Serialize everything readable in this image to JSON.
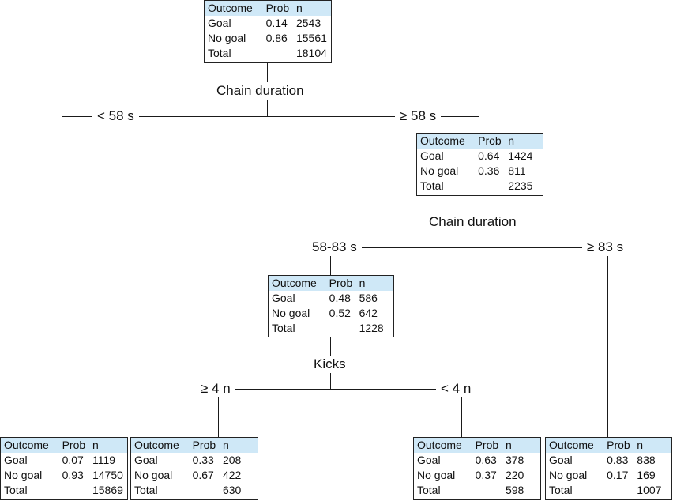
{
  "nodes": {
    "root": {
      "headers": [
        "Outcome",
        "Prob",
        "n"
      ],
      "rows": [
        [
          "Goal",
          "0.14",
          "2543"
        ],
        [
          "No goal",
          "0.86",
          "15561"
        ],
        [
          "Total",
          "",
          "18104"
        ]
      ]
    },
    "ge58": {
      "headers": [
        "Outcome",
        "Prob",
        "n"
      ],
      "rows": [
        [
          "Goal",
          "0.64",
          "1424"
        ],
        [
          "No goal",
          "0.36",
          "811"
        ],
        [
          "Total",
          "",
          "2235"
        ]
      ]
    },
    "mid": {
      "headers": [
        "Outcome",
        "Prob",
        "n"
      ],
      "rows": [
        [
          "Goal",
          "0.48",
          "586"
        ],
        [
          "No goal",
          "0.52",
          "642"
        ],
        [
          "Total",
          "",
          "1228"
        ]
      ]
    },
    "leaf_lt58": {
      "headers": [
        "Outcome",
        "Prob",
        "n"
      ],
      "rows": [
        [
          "Goal",
          "0.07",
          "1119"
        ],
        [
          "No goal",
          "0.93",
          "14750"
        ],
        [
          "Total",
          "",
          "15869"
        ]
      ]
    },
    "leaf_ge4": {
      "headers": [
        "Outcome",
        "Prob",
        "n"
      ],
      "rows": [
        [
          "Goal",
          "0.33",
          "208"
        ],
        [
          "No goal",
          "0.67",
          "422"
        ],
        [
          "Total",
          "",
          "630"
        ]
      ]
    },
    "leaf_lt4": {
      "headers": [
        "Outcome",
        "Prob",
        "n"
      ],
      "rows": [
        [
          "Goal",
          "0.63",
          "378"
        ],
        [
          "No goal",
          "0.37",
          "220"
        ],
        [
          "Total",
          "",
          "598"
        ]
      ]
    },
    "leaf_ge83": {
      "headers": [
        "Outcome",
        "Prob",
        "n"
      ],
      "rows": [
        [
          "Goal",
          "0.83",
          "838"
        ],
        [
          "No goal",
          "0.17",
          "169"
        ],
        [
          "Total",
          "",
          "1007"
        ]
      ]
    }
  },
  "splits": {
    "root": "Chain duration",
    "ge58": "Chain duration",
    "mid": "Kicks"
  },
  "branches": {
    "lt58": "< 58 s",
    "ge58": "≥ 58 s",
    "b58_83": "58-83 s",
    "ge83": "≥ 83 s",
    "ge4": "≥ 4 n",
    "lt4": "< 4 n"
  }
}
